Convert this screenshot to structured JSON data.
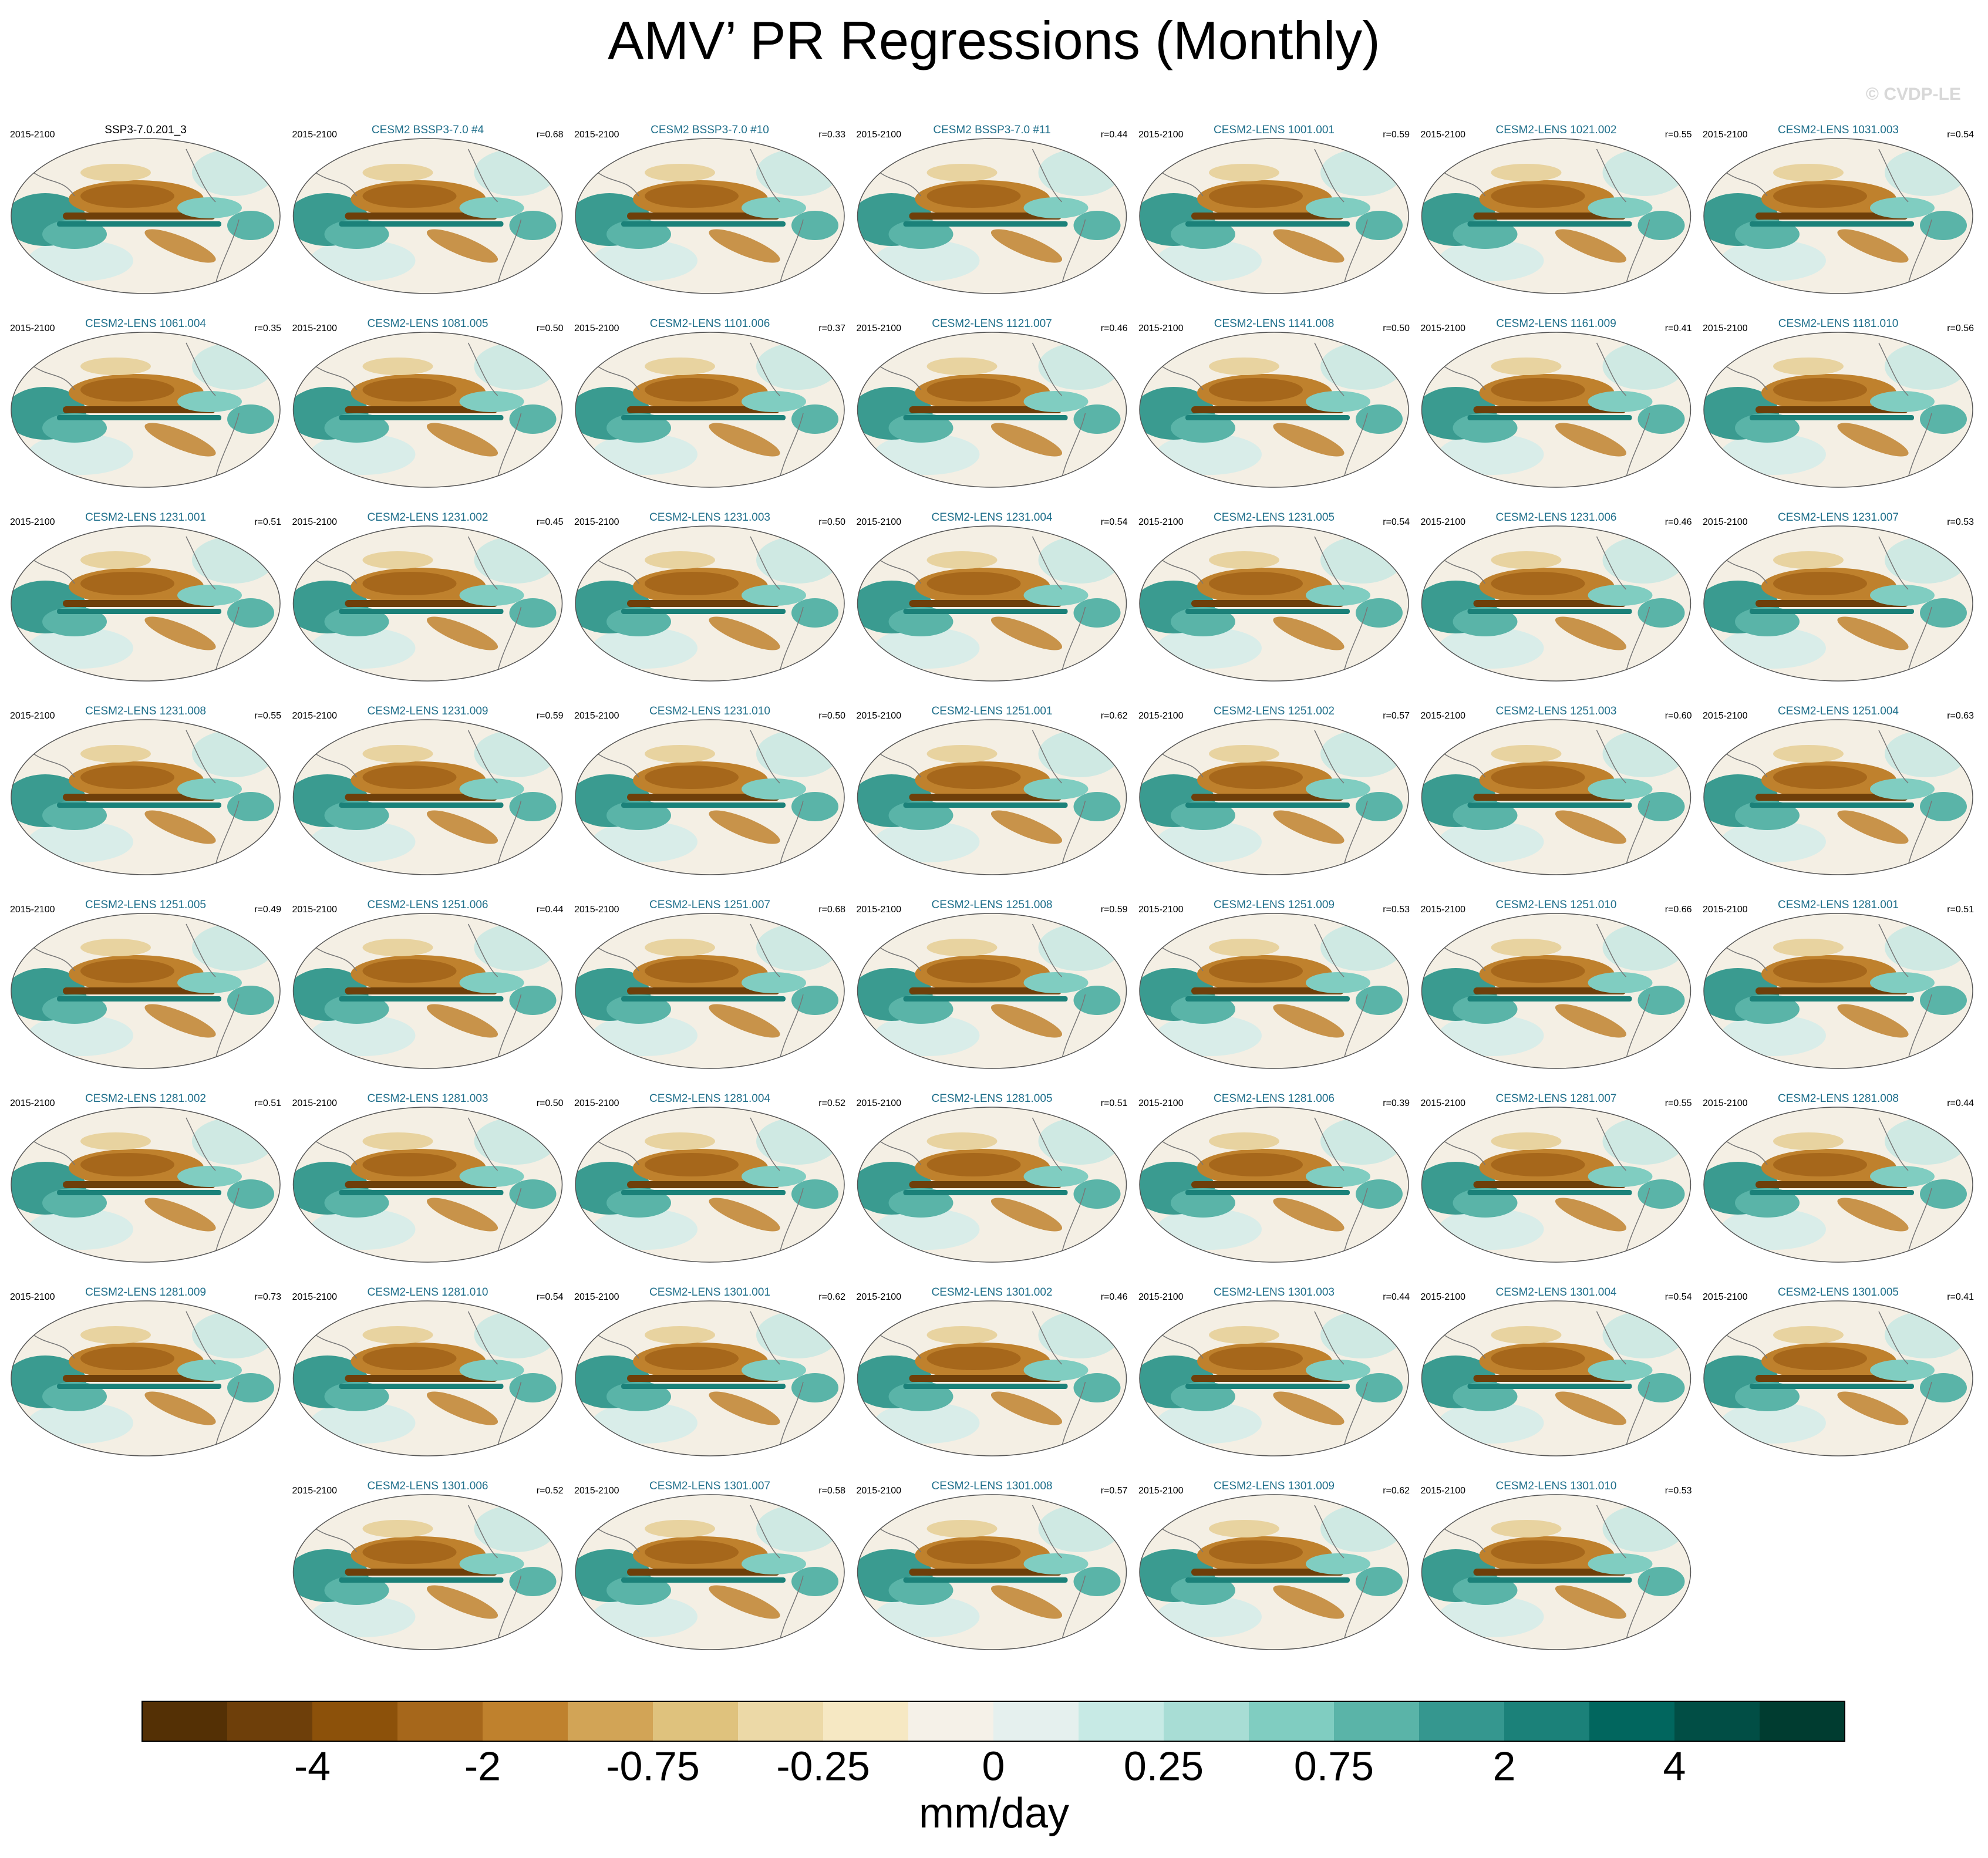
{
  "title": "AMV’ PR Regressions (Monthly)",
  "watermark": "© CVDP-LE",
  "panels": [
    {
      "period": "2015-2100",
      "name": "SSP3-7.0.201_3"
    },
    {
      "period": "2015-2100",
      "name": "CESM2 BSSP3-7.0 #4",
      "r": "r=0.68"
    },
    {
      "period": "2015-2100",
      "name": "CESM2 BSSP3-7.0 #10",
      "r": "r=0.33"
    },
    {
      "period": "2015-2100",
      "name": "CESM2 BSSP3-7.0 #11",
      "r": "r=0.44"
    },
    {
      "period": "2015-2100",
      "name": "CESM2-LENS 1001.001",
      "r": "r=0.59"
    },
    {
      "period": "2015-2100",
      "name": "CESM2-LENS 1021.002",
      "r": "r=0.55"
    },
    {
      "period": "2015-2100",
      "name": "CESM2-LENS 1031.003",
      "r": "r=0.54"
    },
    {
      "period": "2015-2100",
      "name": "CESM2-LENS 1061.004",
      "r": "r=0.35"
    },
    {
      "period": "2015-2100",
      "name": "CESM2-LENS 1081.005",
      "r": "r=0.50"
    },
    {
      "period": "2015-2100",
      "name": "CESM2-LENS 1101.006",
      "r": "r=0.37"
    },
    {
      "period": "2015-2100",
      "name": "CESM2-LENS 1121.007",
      "r": "r=0.46"
    },
    {
      "period": "2015-2100",
      "name": "CESM2-LENS 1141.008",
      "r": "r=0.50"
    },
    {
      "period": "2015-2100",
      "name": "CESM2-LENS 1161.009",
      "r": "r=0.41"
    },
    {
      "period": "2015-2100",
      "name": "CESM2-LENS 1181.010",
      "r": "r=0.56"
    },
    {
      "period": "2015-2100",
      "name": "CESM2-LENS 1231.001",
      "r": "r=0.51"
    },
    {
      "period": "2015-2100",
      "name": "CESM2-LENS 1231.002",
      "r": "r=0.45"
    },
    {
      "period": "2015-2100",
      "name": "CESM2-LENS 1231.003",
      "r": "r=0.50"
    },
    {
      "period": "2015-2100",
      "name": "CESM2-LENS 1231.004",
      "r": "r=0.54"
    },
    {
      "period": "2015-2100",
      "name": "CESM2-LENS 1231.005",
      "r": "r=0.54"
    },
    {
      "period": "2015-2100",
      "name": "CESM2-LENS 1231.006",
      "r": "r=0.46"
    },
    {
      "period": "2015-2100",
      "name": "CESM2-LENS 1231.007",
      "r": "r=0.53"
    },
    {
      "period": "2015-2100",
      "name": "CESM2-LENS 1231.008",
      "r": "r=0.55"
    },
    {
      "period": "2015-2100",
      "name": "CESM2-LENS 1231.009",
      "r": "r=0.59"
    },
    {
      "period": "2015-2100",
      "name": "CESM2-LENS 1231.010",
      "r": "r=0.50"
    },
    {
      "period": "2015-2100",
      "name": "CESM2-LENS 1251.001",
      "r": "r=0.62"
    },
    {
      "period": "2015-2100",
      "name": "CESM2-LENS 1251.002",
      "r": "r=0.57"
    },
    {
      "period": "2015-2100",
      "name": "CESM2-LENS 1251.003",
      "r": "r=0.60"
    },
    {
      "period": "2015-2100",
      "name": "CESM2-LENS 1251.004",
      "r": "r=0.63"
    },
    {
      "period": "2015-2100",
      "name": "CESM2-LENS 1251.005",
      "r": "r=0.49"
    },
    {
      "period": "2015-2100",
      "name": "CESM2-LENS 1251.006",
      "r": "r=0.44"
    },
    {
      "period": "2015-2100",
      "name": "CESM2-LENS 1251.007",
      "r": "r=0.68"
    },
    {
      "period": "2015-2100",
      "name": "CESM2-LENS 1251.008",
      "r": "r=0.59"
    },
    {
      "period": "2015-2100",
      "name": "CESM2-LENS 1251.009",
      "r": "r=0.53"
    },
    {
      "period": "2015-2100",
      "name": "CESM2-LENS 1251.010",
      "r": "r=0.66"
    },
    {
      "period": "2015-2100",
      "name": "CESM2-LENS 1281.001",
      "r": "r=0.51"
    },
    {
      "period": "2015-2100",
      "name": "CESM2-LENS 1281.002",
      "r": "r=0.51"
    },
    {
      "period": "2015-2100",
      "name": "CESM2-LENS 1281.003",
      "r": "r=0.50"
    },
    {
      "period": "2015-2100",
      "name": "CESM2-LENS 1281.004",
      "r": "r=0.52"
    },
    {
      "period": "2015-2100",
      "name": "CESM2-LENS 1281.005",
      "r": "r=0.51"
    },
    {
      "period": "2015-2100",
      "name": "CESM2-LENS 1281.006",
      "r": "r=0.39"
    },
    {
      "period": "2015-2100",
      "name": "CESM2-LENS 1281.007",
      "r": "r=0.55"
    },
    {
      "period": "2015-2100",
      "name": "CESM2-LENS 1281.008",
      "r": "r=0.44"
    },
    {
      "period": "2015-2100",
      "name": "CESM2-LENS 1281.009",
      "r": "r=0.73"
    },
    {
      "period": "2015-2100",
      "name": "CESM2-LENS 1281.010",
      "r": "r=0.54"
    },
    {
      "period": "2015-2100",
      "name": "CESM2-LENS 1301.001",
      "r": "r=0.62"
    },
    {
      "period": "2015-2100",
      "name": "CESM2-LENS 1301.002",
      "r": "r=0.46"
    },
    {
      "period": "2015-2100",
      "name": "CESM2-LENS 1301.003",
      "r": "r=0.44"
    },
    {
      "period": "2015-2100",
      "name": "CESM2-LENS 1301.004",
      "r": "r=0.54"
    },
    {
      "period": "2015-2100",
      "name": "CESM2-LENS 1301.005",
      "r": "r=0.41"
    },
    {
      "period": "2015-2100",
      "name": "CESM2-LENS 1301.006",
      "r": "r=0.52"
    },
    {
      "period": "2015-2100",
      "name": "CESM2-LENS 1301.007",
      "r": "r=0.58"
    },
    {
      "period": "2015-2100",
      "name": "CESM2-LENS 1301.008",
      "r": "r=0.57"
    },
    {
      "period": "2015-2100",
      "name": "CESM2-LENS 1301.009",
      "r": "r=0.62"
    },
    {
      "period": "2015-2100",
      "name": "CESM2-LENS 1301.010",
      "r": "r=0.53"
    }
  ],
  "colorbar": {
    "colors": [
      "#543005",
      "#6e3f0a",
      "#8c510a",
      "#a6671b",
      "#bf812d",
      "#d2a456",
      "#dfc27d",
      "#ecd9a7",
      "#f6e8c3",
      "#f5f1e8",
      "#e5f0ee",
      "#c7eae5",
      "#a8ddd5",
      "#80cdc1",
      "#5ab4a8",
      "#35978f",
      "#1b8179",
      "#01665e",
      "#014e45",
      "#003c30"
    ],
    "labels": [
      -4,
      -2,
      -0.75,
      -0.25,
      0,
      0.25,
      0.75,
      2,
      4
    ],
    "unit": "mm/day"
  }
}
